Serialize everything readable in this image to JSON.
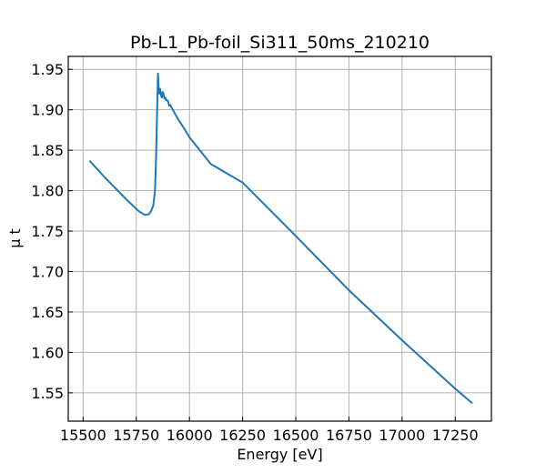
{
  "chart_data": {
    "type": "line",
    "title": "Pb-L1_Pb-foil_Si311_50ms_210210",
    "xlabel": "Energy [eV]",
    "ylabel": "μ t",
    "xlim": [
      15430,
      17420
    ],
    "ylim": [
      1.515,
      1.966
    ],
    "x_ticks": [
      15500,
      15750,
      16000,
      16250,
      16500,
      16750,
      17000,
      17250
    ],
    "y_ticks": [
      1.55,
      1.6,
      1.65,
      1.7,
      1.75,
      1.8,
      1.85,
      1.9,
      1.95
    ],
    "x_tick_labels": [
      "15500",
      "15750",
      "16000",
      "16250",
      "16500",
      "16750",
      "17000",
      "17250"
    ],
    "y_tick_labels": [
      "1.55",
      "1.60",
      "1.65",
      "1.70",
      "1.75",
      "1.80",
      "1.85",
      "1.90",
      "1.95"
    ],
    "grid": true,
    "tick_direction": "in",
    "series": [
      {
        "color": "#1f77b4",
        "x": [
          15530,
          15600,
          15700,
          15760,
          15790,
          15810,
          15820,
          15830,
          15838,
          15843,
          15848,
          15852,
          15855,
          15858,
          15862,
          15866,
          15870,
          15874,
          15878,
          15882,
          15886,
          15890,
          15895,
          15900,
          15905,
          15910,
          15915,
          15920,
          15930,
          15950,
          15970,
          16000,
          16100,
          16250,
          16500,
          16750,
          17000,
          17250,
          17330
        ],
        "y": [
          1.837,
          1.817,
          1.79,
          1.775,
          1.77,
          1.771,
          1.775,
          1.782,
          1.8,
          1.84,
          1.9,
          1.945,
          1.928,
          1.92,
          1.926,
          1.918,
          1.915,
          1.922,
          1.92,
          1.914,
          1.915,
          1.912,
          1.912,
          1.91,
          1.905,
          1.906,
          1.903,
          1.901,
          1.896,
          1.887,
          1.879,
          1.866,
          1.833,
          1.81,
          1.744,
          1.677,
          1.615,
          1.555,
          1.537
        ]
      }
    ]
  }
}
